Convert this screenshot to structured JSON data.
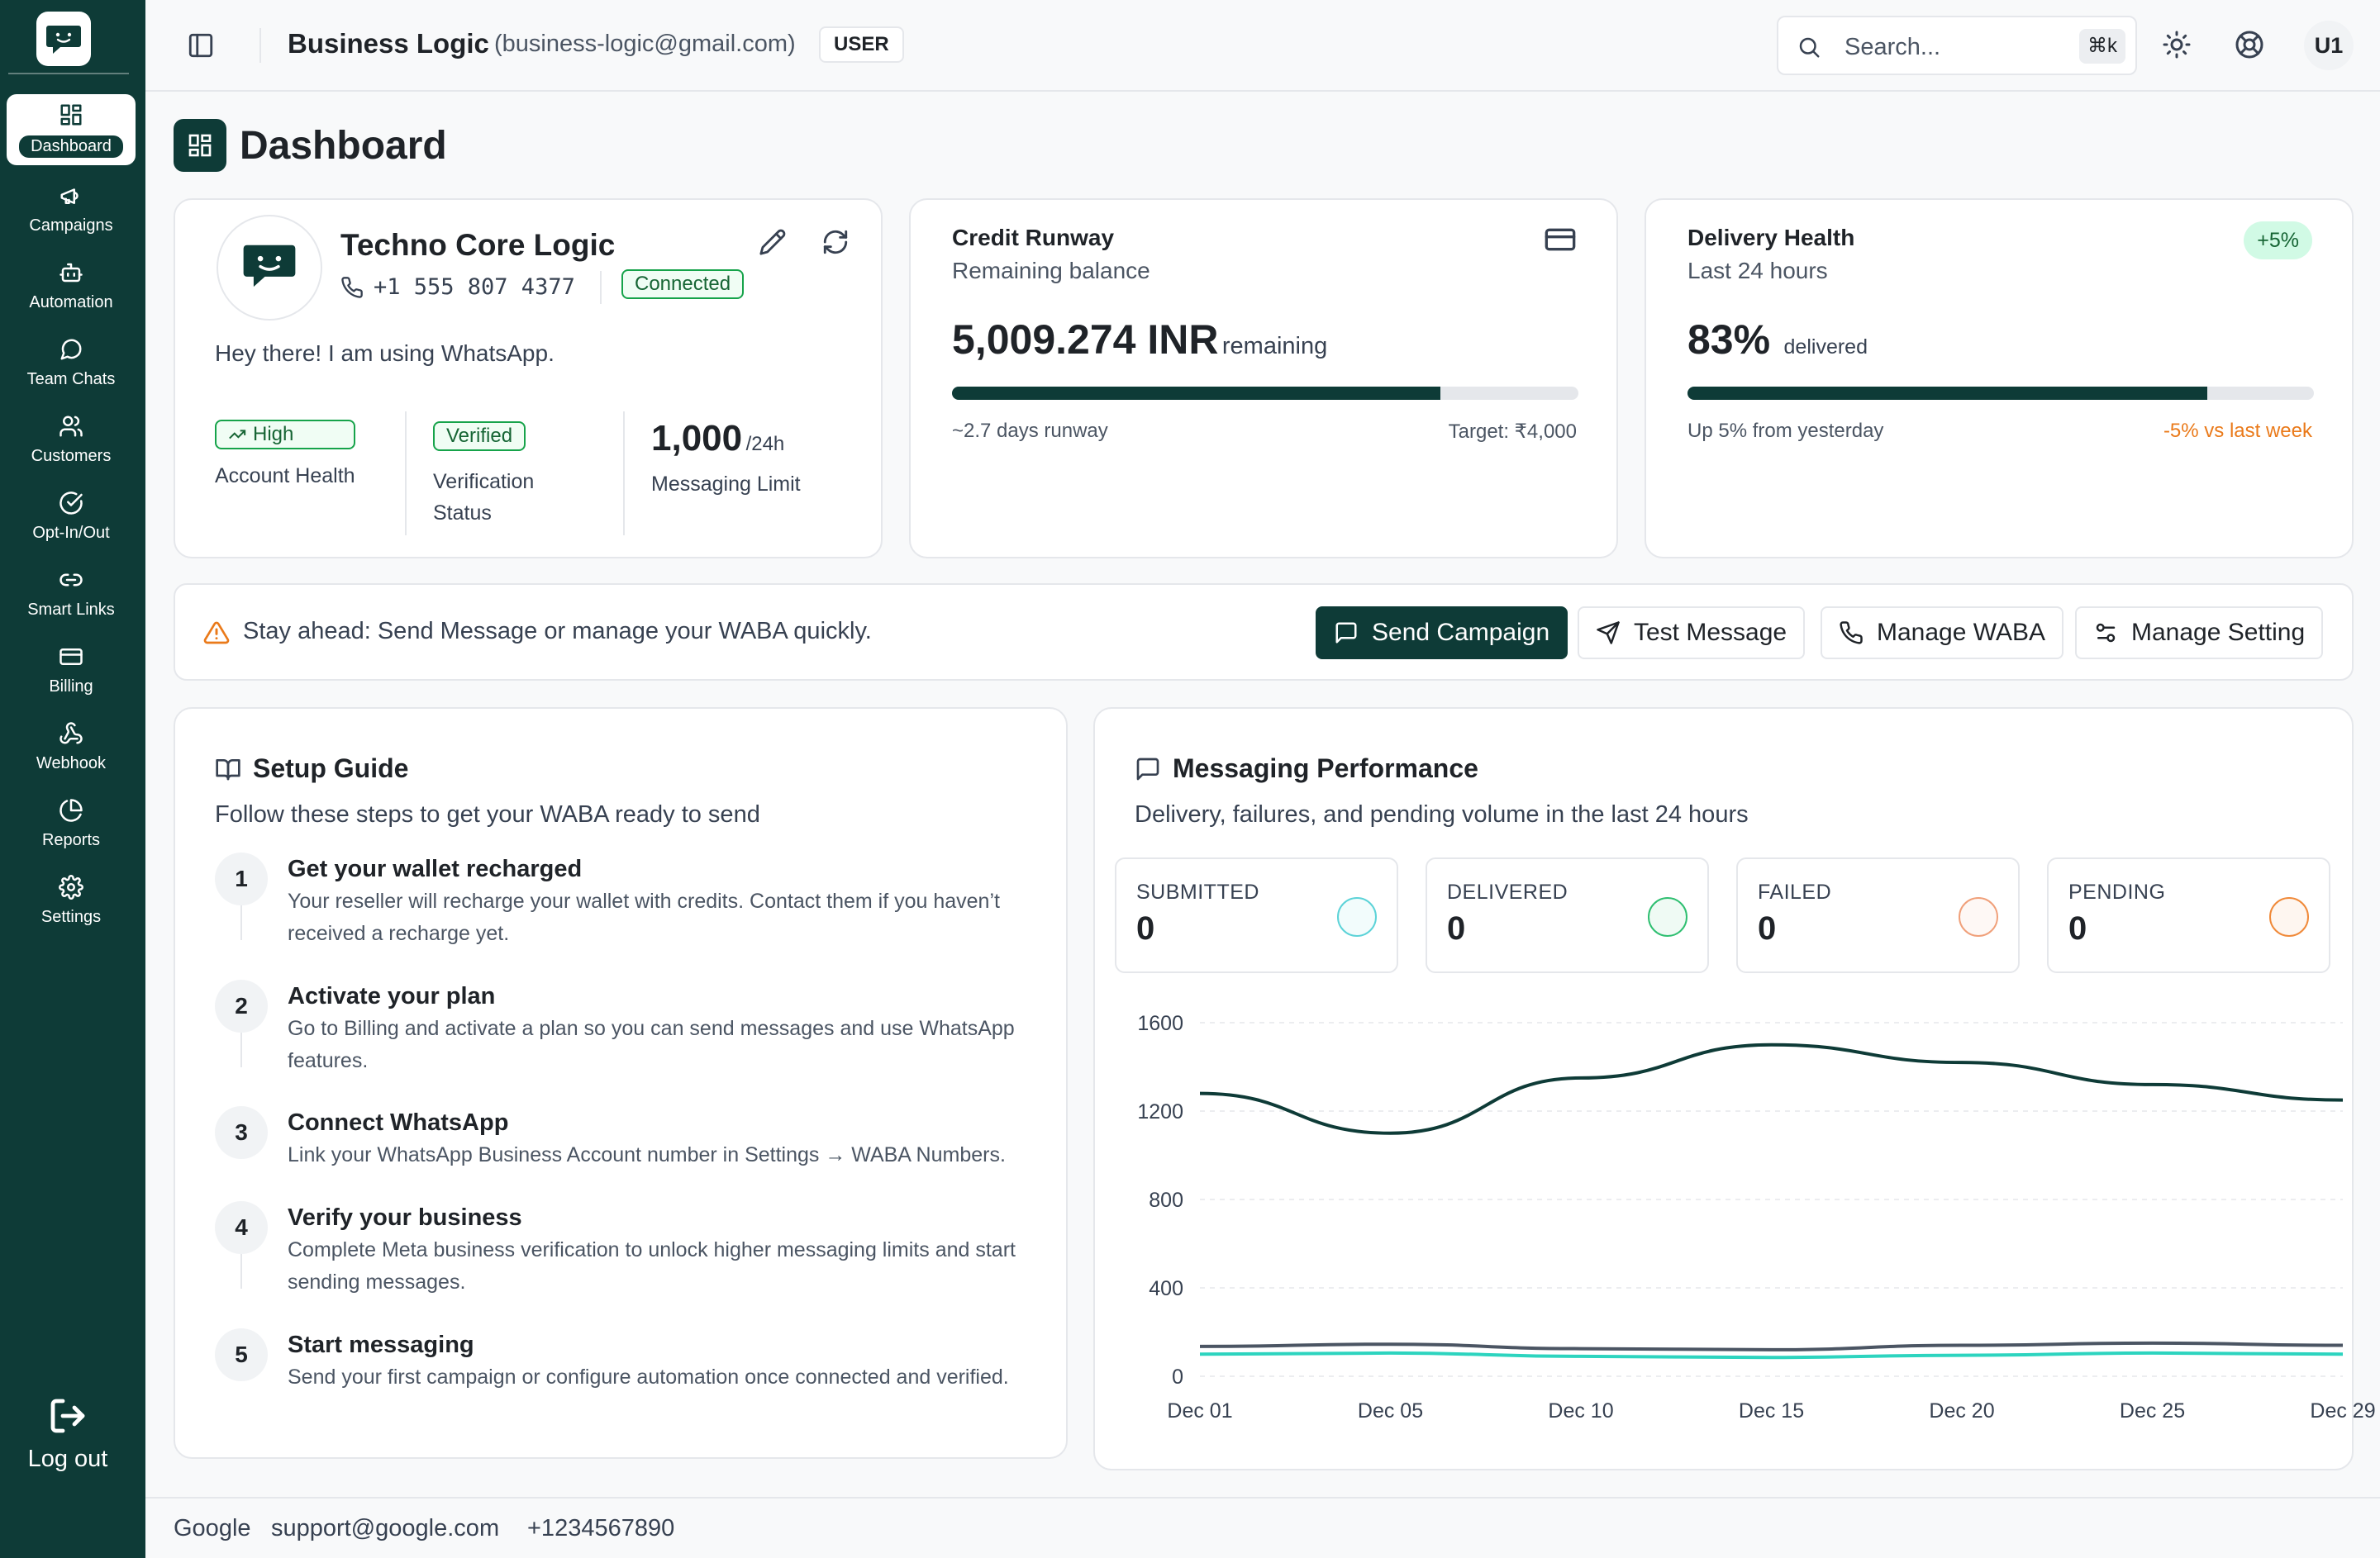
{
  "sidebar": {
    "items": [
      {
        "label": "Dashboard",
        "icon": "dashboard-icon"
      },
      {
        "label": "Campaigns",
        "icon": "megaphone-icon"
      },
      {
        "label": "Automation",
        "icon": "bot-icon"
      },
      {
        "label": "Team Chats",
        "icon": "chat-bubble-icon"
      },
      {
        "label": "Customers",
        "icon": "users-icon"
      },
      {
        "label": "Opt-In/Out",
        "icon": "check-circle-icon"
      },
      {
        "label": "Smart Links",
        "icon": "link-icon"
      },
      {
        "label": "Billing",
        "icon": "credit-card-icon"
      },
      {
        "label": "Webhook",
        "icon": "webhook-icon"
      },
      {
        "label": "Reports",
        "icon": "pie-chart-icon"
      },
      {
        "label": "Settings",
        "icon": "gear-icon"
      }
    ],
    "logout_label": "Log out"
  },
  "header": {
    "business_name": "Business Logic",
    "business_email": "(business-logic@gmail.com)",
    "role": "USER",
    "search_placeholder": "Search...",
    "search_shortcut": "⌘k",
    "avatar_initials": "U1"
  },
  "page_title": "Dashboard",
  "profile": {
    "name": "Techno Core Logic",
    "phone": "+1 555 807 4377",
    "status": "Connected",
    "about": "Hey there! I am using WhatsApp.",
    "health_badge": "High",
    "health_label": "Account Health",
    "verification_badge": "Verified",
    "verification_label": "Verification Status",
    "limit_value": "1,000",
    "limit_unit": "/24h",
    "limit_label": "Messaging Limit"
  },
  "credit": {
    "title": "Credit Runway",
    "subtitle": "Remaining balance",
    "amount": "5,009.274 INR",
    "amount_suffix": "remaining",
    "progress_fraction": 0.78,
    "runway": "~2.7 days runway",
    "target": "Target: ₹4,000"
  },
  "delivery": {
    "title": "Delivery Health",
    "subtitle": "Last 24 hours",
    "change_badge": "+5%",
    "percent": "83%",
    "percent_suffix": "delivered",
    "progress_fraction": 0.83,
    "trend_note": "Up 5% from yesterday",
    "weekly_note": "-5% vs last week"
  },
  "actions": {
    "notice": "Stay ahead: Send Message or manage your WABA quickly.",
    "send_campaign": "Send Campaign",
    "test_message": "Test Message",
    "manage_waba": "Manage WABA",
    "manage_setting": "Manage Setting"
  },
  "setup": {
    "title": "Setup Guide",
    "subtitle": "Follow these steps to get your WABA ready to send",
    "steps": [
      {
        "num": "1",
        "title": "Get your wallet recharged",
        "desc": "Your reseller will recharge your wallet with credits. Contact them if you haven’t received a recharge yet."
      },
      {
        "num": "2",
        "title": "Activate your plan",
        "desc": "Go to Billing and activate a plan so you can send messages and use WhatsApp features."
      },
      {
        "num": "3",
        "title": "Connect WhatsApp",
        "desc": "Link your WhatsApp Business Account number in Settings → WABA Numbers."
      },
      {
        "num": "4",
        "title": "Verify your business",
        "desc": "Complete Meta business verification to unlock higher messaging limits and start sending messages."
      },
      {
        "num": "5",
        "title": "Start messaging",
        "desc": "Send your first campaign or configure automation once connected and verified."
      }
    ]
  },
  "performance": {
    "title": "Messaging Performance",
    "subtitle": "Delivery, failures, and pending volume in the last 24 hours",
    "stats": [
      {
        "label": "SUBMITTED",
        "value": "0",
        "color": "#5dd3d8"
      },
      {
        "label": "DELIVERED",
        "value": "0",
        "color": "#2fbf71"
      },
      {
        "label": "FAILED",
        "value": "0",
        "color": "#f0a07a"
      },
      {
        "label": "PENDING",
        "value": "0",
        "color": "#f08a3a"
      }
    ]
  },
  "chart_data": {
    "type": "line",
    "x": [
      "Dec 01",
      "Dec 05",
      "Dec 10",
      "Dec 15",
      "Dec 20",
      "Dec 25",
      "Dec 29"
    ],
    "ylim": [
      0,
      1600
    ],
    "yticks": [
      0,
      400,
      800,
      1200,
      1600
    ],
    "grid": true,
    "series": [
      {
        "color": "#0e3b37",
        "values": [
          1280,
          1100,
          1350,
          1500,
          1420,
          1320,
          1250
        ]
      },
      {
        "color": "#4b5563",
        "values": [
          135,
          145,
          125,
          120,
          140,
          150,
          140
        ]
      },
      {
        "color": "#2dd4bf",
        "values": [
          100,
          105,
          90,
          85,
          95,
          105,
          100
        ]
      }
    ]
  },
  "footer": {
    "company": "Google",
    "email": "support@google.com",
    "phone": "+1234567890"
  },
  "colors": {
    "brand": "#0e3b37",
    "success": "#16a34a",
    "warning": "#f08a3a"
  }
}
